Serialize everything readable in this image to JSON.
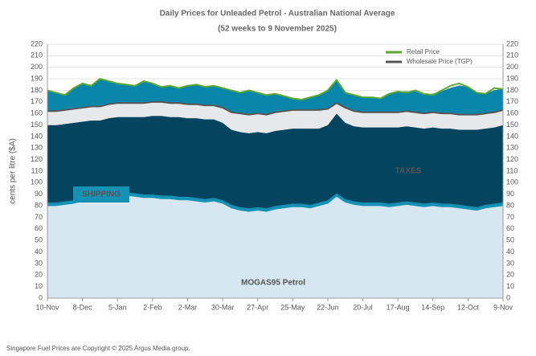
{
  "chart_data": {
    "type": "stacked_area",
    "title": "Daily Prices for Unleaded Petrol - Australian National Average",
    "subtitle": "(52 weeks to 9 November 2025)",
    "y_label": "cents per litre ($A)",
    "footnote": "Singapore Fuel Prices are Copyright © 2025 Argus Media group.",
    "categories": [
      "10-Nov",
      null,
      null,
      null,
      "8-Dec",
      null,
      null,
      null,
      "5-Jan",
      null,
      null,
      null,
      "2-Feb",
      null,
      null,
      null,
      "2-Mar",
      null,
      null,
      null,
      "30-Mar",
      null,
      null,
      null,
      "27-Apr",
      null,
      null,
      null,
      "25-May",
      null,
      null,
      null,
      "22-Jun",
      null,
      null,
      null,
      "20-Jul",
      null,
      null,
      null,
      "17-Aug",
      null,
      null,
      null,
      "14-Sep",
      null,
      null,
      null,
      "12-Oct",
      null,
      null,
      null,
      "9-Nov"
    ],
    "ylim": [
      0,
      220
    ],
    "yticks": [
      0,
      10,
      20,
      30,
      40,
      50,
      60,
      70,
      80,
      90,
      100,
      110,
      120,
      130,
      140,
      150,
      160,
      170,
      180,
      190,
      200,
      210,
      220
    ],
    "y2lim": [
      0,
      220
    ],
    "y2ticks": [
      0,
      10,
      20,
      30,
      40,
      50,
      60,
      70,
      80,
      90,
      100,
      110,
      120,
      130,
      140,
      150,
      160,
      170,
      180,
      190,
      200,
      210,
      220
    ],
    "grid": true,
    "areas": [
      {
        "name": "MOGAS95 Petrol",
        "color": "#d6e7f1",
        "values": [
          80,
          80,
          81,
          82,
          84,
          85,
          84,
          86,
          88,
          89,
          88,
          87,
          87,
          86,
          86,
          85,
          85,
          84,
          83,
          84,
          82,
          78,
          76,
          75,
          76,
          75,
          77,
          78,
          79,
          79,
          78,
          80,
          82,
          88,
          83,
          81,
          80,
          80,
          80,
          79,
          80,
          81,
          80,
          79,
          80,
          79,
          79,
          78,
          77,
          76,
          78,
          79,
          80
        ]
      },
      {
        "name": "SHIPPING",
        "color": "#1591b5",
        "values": [
          3,
          3,
          3,
          3,
          3,
          3,
          3,
          3,
          3,
          3,
          3,
          3,
          3,
          3,
          3,
          3,
          3,
          3,
          3,
          3,
          3,
          3,
          3,
          3,
          3,
          3,
          3,
          3,
          3,
          3,
          3,
          3,
          3,
          3,
          3,
          3,
          3,
          3,
          3,
          3,
          3,
          3,
          3,
          3,
          3,
          3,
          3,
          3,
          3,
          3,
          3,
          3,
          3
        ]
      },
      {
        "name": "TAXES",
        "color": "#04445f",
        "values": [
          67,
          67,
          67,
          67,
          66,
          66,
          67,
          67,
          66,
          65,
          66,
          67,
          68,
          69,
          68,
          69,
          68,
          69,
          69,
          68,
          67,
          65,
          65,
          65,
          65,
          65,
          65,
          65,
          65,
          65,
          66,
          64,
          65,
          69,
          66,
          65,
          65,
          65,
          65,
          66,
          65,
          65,
          65,
          65,
          65,
          65,
          65,
          65,
          66,
          67,
          66,
          66,
          67
        ]
      },
      {
        "color": "#e7e8ea",
        "values": [
          12,
          12,
          12,
          12,
          12,
          12,
          12,
          12,
          12,
          12,
          12,
          12,
          12,
          12,
          12,
          12,
          12,
          12,
          12,
          12,
          13,
          15,
          16,
          16,
          16,
          16,
          16,
          16,
          16,
          16,
          16,
          16,
          14,
          9,
          13,
          13,
          13,
          13,
          13,
          13,
          13,
          13,
          13,
          13,
          13,
          13,
          13,
          13,
          13,
          13,
          13,
          13,
          13
        ]
      },
      {
        "color": "#0a86ab",
        "values": [
          18,
          16,
          13,
          18,
          21,
          18,
          24,
          20,
          17,
          16,
          15,
          19,
          16,
          13,
          15,
          13,
          16,
          17,
          16,
          17,
          17,
          19,
          18,
          21,
          18,
          17,
          16,
          13,
          10,
          9,
          11,
          13,
          16,
          20,
          13,
          14,
          13,
          13,
          12,
          16,
          18,
          17,
          18,
          16,
          16,
          19,
          22,
          25,
          24,
          19,
          17,
          19,
          18
        ]
      }
    ],
    "series": [
      {
        "name": "Retail Price",
        "color": "#5aa832",
        "values": [
          180,
          178,
          176,
          182,
          186,
          184,
          190,
          188,
          186,
          185,
          184,
          188,
          186,
          183,
          184,
          182,
          184,
          185,
          183,
          184,
          182,
          180,
          178,
          180,
          178,
          176,
          177,
          175,
          173,
          172,
          174,
          176,
          180,
          189,
          178,
          176,
          174,
          174,
          173,
          177,
          179,
          178,
          180,
          177,
          176,
          180,
          184,
          186,
          183,
          178,
          177,
          182,
          181
        ]
      },
      {
        "name": "Wholesale Price (TGP)",
        "color": "#555555",
        "values": [
          162,
          162,
          163,
          164,
          165,
          166,
          166,
          168,
          169,
          169,
          169,
          169,
          170,
          170,
          169,
          169,
          168,
          168,
          167,
          167,
          165,
          161,
          160,
          159,
          160,
          159,
          161,
          162,
          163,
          163,
          163,
          163,
          164,
          169,
          165,
          162,
          161,
          161,
          161,
          161,
          161,
          162,
          161,
          160,
          161,
          160,
          160,
          159,
          159,
          159,
          160,
          161,
          163
        ]
      }
    ]
  }
}
